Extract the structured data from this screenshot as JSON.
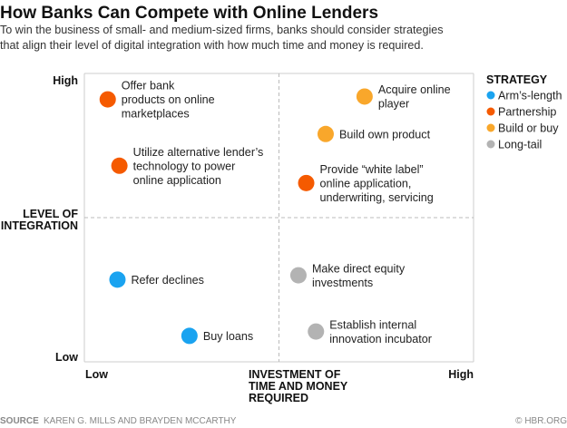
{
  "title": "How Banks Can Compete with Online Lenders",
  "subtitle": [
    "To win the business of small- and medium-sized firms, banks should consider strategies",
    "that align their level of digital integration with how much time and money is required."
  ],
  "source_label": "SOURCE",
  "source": "KAREN G. MILLS AND BRAYDEN MCCARTHY",
  "credit": "© HBR.ORG",
  "chart_data": {
    "type": "scatter",
    "title": "How Banks Can Compete with Online Lenders",
    "xlabel": [
      "INVESTMENT OF",
      "TIME AND MONEY",
      "REQUIRED"
    ],
    "ylabel": [
      "LEVEL OF",
      "INTEGRATION"
    ],
    "x_ticks": {
      "low": "Low",
      "high": "High"
    },
    "y_ticks": {
      "low": "Low",
      "high": "High"
    },
    "xlim": [
      0,
      10
    ],
    "ylim": [
      0,
      10
    ],
    "quadrant_dividers": {
      "x": 5,
      "y": 5
    },
    "legend": {
      "title": "STRATEGY",
      "placement": "right",
      "entries": [
        {
          "name": "Arm’s-length",
          "color": "#1aa3f0"
        },
        {
          "name": "Partnership",
          "color": "#f55a00"
        },
        {
          "name": "Build or buy",
          "color": "#f9a72b"
        },
        {
          "name": "Long-tail",
          "color": "#b3b3b3"
        }
      ]
    },
    "points": [
      {
        "label": [
          "Offer bank",
          "products on online",
          "marketplaces"
        ],
        "strategy": 1,
        "x": 0.6,
        "y": 9.1
      },
      {
        "label": [
          "Utilize alternative lender’s",
          "technology to power",
          "online application"
        ],
        "strategy": 1,
        "x": 0.9,
        "y": 6.8
      },
      {
        "label": [
          "Acquire online",
          "player"
        ],
        "strategy": 2,
        "x": 7.2,
        "y": 9.2
      },
      {
        "label": [
          "Build own product"
        ],
        "strategy": 2,
        "x": 6.2,
        "y": 7.9
      },
      {
        "label": [
          "Provide “white label”",
          "online application,",
          "underwriting, servicing"
        ],
        "strategy": 1,
        "x": 5.7,
        "y": 6.2
      },
      {
        "label": [
          "Refer declines"
        ],
        "strategy": 0,
        "x": 0.85,
        "y": 2.85
      },
      {
        "label": [
          "Buy loans"
        ],
        "strategy": 0,
        "x": 2.7,
        "y": 0.9
      },
      {
        "label": [
          "Make direct equity",
          "investments"
        ],
        "strategy": 3,
        "x": 5.5,
        "y": 3.0
      },
      {
        "label": [
          "Establish internal",
          "innovation incubator"
        ],
        "strategy": 3,
        "x": 5.95,
        "y": 1.05
      }
    ]
  }
}
